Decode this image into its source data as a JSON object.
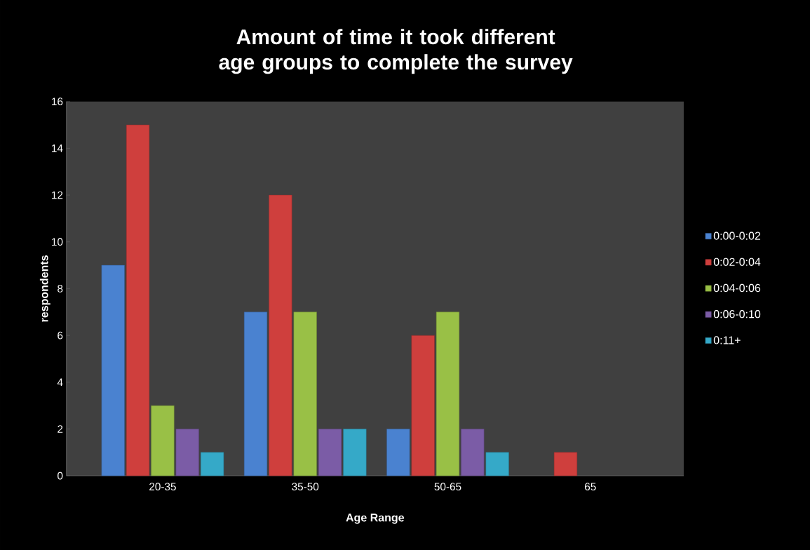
{
  "chart_data": {
    "type": "bar",
    "title": "Amount of time it took different age groups to complete the survey",
    "xlabel": "Age Range",
    "ylabel": "respondents",
    "categories": [
      "20-35",
      "35-50",
      "50-65",
      "65"
    ],
    "series": [
      {
        "name": "0:00-0:02",
        "color": "#4a82d0",
        "values": [
          9,
          7,
          2,
          null
        ]
      },
      {
        "name": "0:02-0:04",
        "color": "#cf3f3d",
        "values": [
          15,
          12,
          6,
          1
        ]
      },
      {
        "name": "0:04-0:06",
        "color": "#99c046",
        "values": [
          3,
          7,
          7,
          null
        ]
      },
      {
        "name": "0:06-0:10",
        "color": "#7b5ca6",
        "values": [
          2,
          2,
          2,
          null
        ]
      },
      {
        "name": "0:11+",
        "color": "#35a9c8",
        "values": [
          1,
          2,
          1,
          null
        ]
      }
    ],
    "ylim": [
      0,
      16
    ],
    "yticks": [
      0,
      2,
      4,
      6,
      8,
      10,
      12,
      14,
      16
    ],
    "legend": "right"
  }
}
